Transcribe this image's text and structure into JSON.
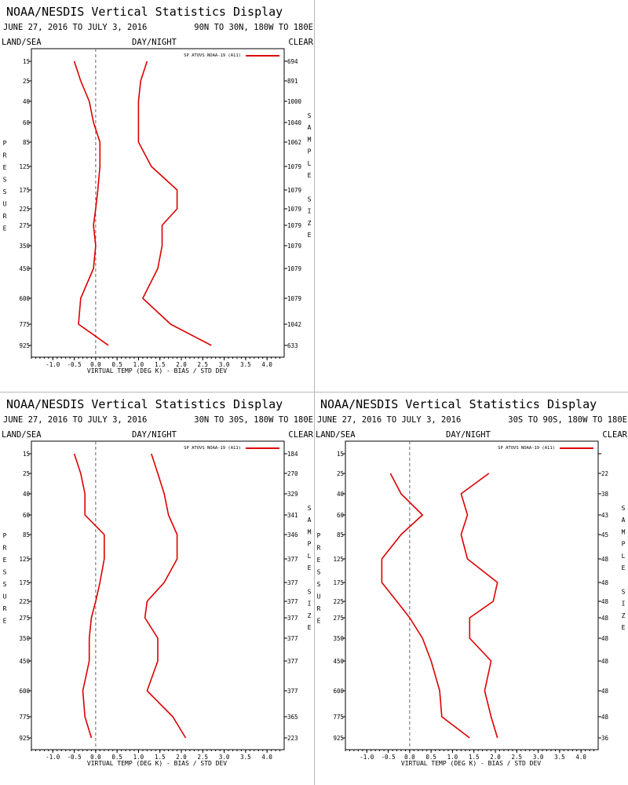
{
  "chart_data": [
    {
      "type": "line",
      "title": "NOAA/NESDIS Vertical Statistics Display",
      "date_range": "JUNE 27, 2016 TO JULY 3, 2016",
      "region": "90N TO 30N, 180W TO 180E",
      "surface": "LAND/SEA",
      "time": "DAY/NIGHT",
      "sky": "CLEAR",
      "xlabel": "VIRTUAL TEMP (DEG K) - BIAS / STD DEV",
      "ylabel": "PRESSURE",
      "y2label": "SAMPLE SIZE",
      "legend": "SP ATOVS NOAA-19 (A11)",
      "color": "#dd0000",
      "xticks": [
        "-1.0",
        "-0.5",
        "0.0",
        "0.5",
        "1.0",
        "1.5",
        "2.0",
        "2.5",
        "3.0",
        "3.5",
        "4.0"
      ],
      "xlim": [
        -1.5,
        4.4
      ],
      "pressure_levels": [
        15,
        25,
        40,
        60,
        85,
        125,
        175,
        225,
        275,
        350,
        450,
        600,
        775,
        925
      ],
      "series": [
        {
          "name": "BIAS",
          "values": [
            -0.5,
            -0.35,
            -0.15,
            -0.05,
            0.1,
            0.1,
            0.05,
            0.0,
            -0.05,
            0.0,
            -0.05,
            -0.35,
            -0.4,
            0.3
          ]
        },
        {
          "name": "STD DEV",
          "values": [
            1.2,
            1.05,
            1.0,
            1.0,
            1.0,
            1.3,
            1.9,
            1.9,
            1.55,
            1.55,
            1.45,
            1.1,
            1.75,
            2.7
          ]
        }
      ],
      "sample_size": [
        "694",
        "891",
        "1000",
        "1040",
        "1062",
        "1079",
        "1079",
        "1079",
        "1079",
        "1079",
        "1079",
        "1079",
        "1042",
        "633"
      ]
    },
    {
      "type": "line",
      "title": "NOAA/NESDIS Vertical Statistics Display",
      "date_range": "JUNE 27, 2016 TO JULY 3, 2016",
      "region": "30N TO 30S, 180W TO 180E",
      "surface": "LAND/SEA",
      "time": "DAY/NIGHT",
      "sky": "CLEAR",
      "xlabel": "VIRTUAL TEMP (DEG K) - BIAS / STD DEV",
      "ylabel": "PRESSURE",
      "y2label": "SAMPLE SIZE",
      "legend": "SP ATOVS NOAA-19 (A11)",
      "color": "#dd0000",
      "xticks": [
        "-1.0",
        "-0.5",
        "0.0",
        "0.5",
        "1.0",
        "1.5",
        "2.0",
        "2.5",
        "3.0",
        "3.5",
        "4.0"
      ],
      "xlim": [
        -1.5,
        4.4
      ],
      "pressure_levels": [
        15,
        25,
        40,
        60,
        85,
        125,
        175,
        225,
        275,
        350,
        450,
        600,
        775,
        925
      ],
      "series": [
        {
          "name": "BIAS",
          "values": [
            -0.5,
            -0.35,
            -0.25,
            -0.25,
            0.2,
            0.2,
            0.1,
            0.0,
            -0.1,
            -0.15,
            -0.15,
            -0.3,
            -0.25,
            -0.1
          ]
        },
        {
          "name": "STD DEV",
          "values": [
            1.3,
            1.45,
            1.6,
            1.7,
            1.9,
            1.9,
            1.6,
            1.2,
            1.15,
            1.45,
            1.45,
            1.2,
            1.8,
            2.1
          ]
        }
      ],
      "sample_size": [
        "184",
        "270",
        "329",
        "341",
        "346",
        "377",
        "377",
        "377",
        "377",
        "377",
        "377",
        "377",
        "365",
        "223"
      ]
    },
    {
      "type": "line",
      "title": "NOAA/NESDIS Vertical Statistics Display",
      "date_range": "JUNE 27, 2016 TO JULY 3, 2016",
      "region": "30S TO 90S, 180W TO 180E",
      "surface": "LAND/SEA",
      "time": "DAY/NIGHT",
      "sky": "CLEAR",
      "xlabel": "VIRTUAL TEMP (DEG K) - BIAS / STD DEV",
      "ylabel": "PRESSURE",
      "y2label": "SAMPLE SIZE",
      "legend": "SP ATOVS NOAA-19 (A11)",
      "color": "#dd0000",
      "xticks": [
        "-1.0",
        "-0.5",
        "0.0",
        "0.5",
        "1.0",
        "1.5",
        "2.0",
        "2.5",
        "3.0",
        "3.5",
        "4.0"
      ],
      "xlim": [
        -1.5,
        4.4
      ],
      "pressure_levels": [
        15,
        25,
        40,
        60,
        85,
        125,
        175,
        225,
        275,
        350,
        450,
        600,
        775,
        925
      ],
      "series": [
        {
          "name": "BIAS",
          "levels": [
            25,
            40,
            60,
            85,
            125,
            175,
            225,
            275,
            350,
            450,
            600,
            775,
            925
          ],
          "values": [
            -0.45,
            -0.2,
            0.3,
            -0.2,
            -0.65,
            -0.65,
            -0.3,
            0.0,
            0.3,
            0.5,
            0.7,
            0.75,
            1.4
          ]
        },
        {
          "name": "STD DEV",
          "levels": [
            25,
            40,
            60,
            85,
            125,
            175,
            225,
            275,
            350,
            450,
            600,
            775,
            925
          ],
          "values": [
            1.85,
            1.2,
            1.35,
            1.2,
            1.35,
            2.05,
            1.95,
            1.4,
            1.4,
            1.9,
            1.75,
            1.9,
            2.05
          ]
        }
      ],
      "sample_size": [
        "",
        "22",
        "38",
        "43",
        "45",
        "48",
        "48",
        "48",
        "48",
        "48",
        "48",
        "48",
        "48",
        "36"
      ]
    }
  ]
}
